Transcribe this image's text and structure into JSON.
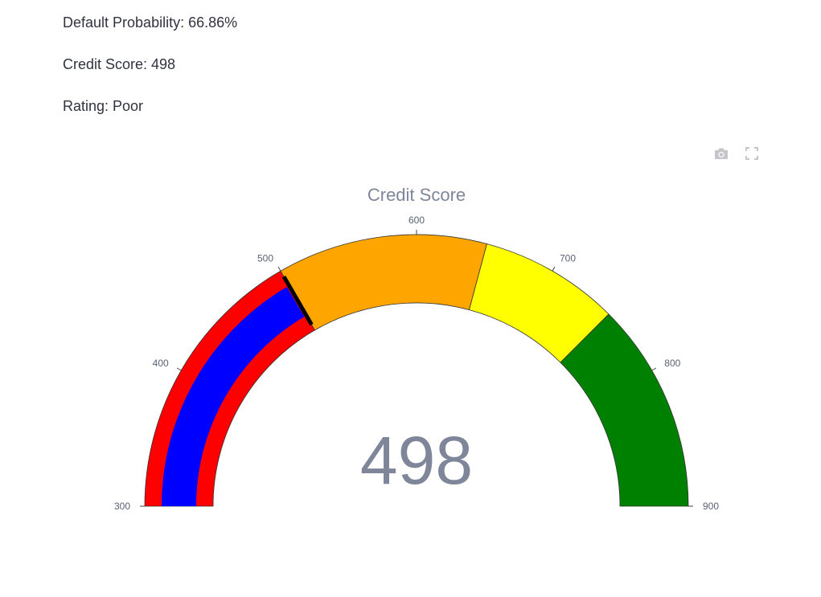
{
  "summary": {
    "default_probability_label": "Default Probability: 66.86%",
    "credit_score_label": "Credit Score: 498",
    "rating_label": "Rating: Poor"
  },
  "modebar": {
    "camera_icon": "camera-icon",
    "fullscreen_icon": "fullscreen-icon"
  },
  "chart_data": {
    "type": "gauge",
    "title": "Credit Score",
    "value": 498,
    "value_text": "498",
    "range": [
      300,
      900
    ],
    "ticks": [
      300,
      400,
      500,
      600,
      700,
      800,
      900
    ],
    "tick_labels": [
      "300",
      "400",
      "500",
      "600",
      "700",
      "800",
      "900"
    ],
    "steps": [
      {
        "range": [
          300,
          500
        ],
        "color": "#ff0000"
      },
      {
        "range": [
          500,
          650
        ],
        "color": "#ffa500"
      },
      {
        "range": [
          650,
          750
        ],
        "color": "#ffff00"
      },
      {
        "range": [
          750,
          900
        ],
        "color": "#008000"
      }
    ],
    "bar_color": "#0000ff",
    "threshold": {
      "value": 500,
      "color": "#000000"
    }
  }
}
